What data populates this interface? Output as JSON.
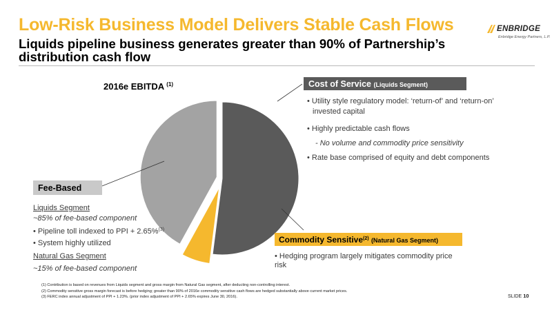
{
  "header": {
    "title": "Low-Risk Business Model Delivers Stable Cash Flows",
    "subtitle": "Liquids pipeline business generates greater than 90% of Partnership’s distribution cash flow"
  },
  "logo": {
    "wordmark": "ENBRIDGE",
    "tagline": "Enbridge Energy Partners, L.P.",
    "color": "#F5B82E"
  },
  "chart_data": {
    "type": "pie",
    "title": "2016e EBITDA",
    "title_note": "(1)",
    "slices": [
      {
        "name": "Cost of Service",
        "share_pct": 52,
        "color": "#5a5a5a"
      },
      {
        "name": "Commodity Sensitive",
        "share_pct": 6,
        "color": "#F5B82E"
      },
      {
        "name": "Fee-Based",
        "share_pct": 42,
        "color": "#a3a3a3"
      }
    ]
  },
  "cost_of_service": {
    "label": "Cost of Service",
    "segment": "(Liquids Segment)",
    "bullets": [
      "• Utility style regulatory model: ‘return-of’ and ‘return-on’",
      "invested capital",
      "• Highly predictable cash flows",
      "- No volume and commodity price sensitivity",
      "• Rate base comprised of equity and debt components"
    ]
  },
  "fee_based": {
    "label": "Fee-Based",
    "liquids_heading": "Liquids Segment",
    "liquids_share": "~85% of fee-based component",
    "bullet_1": "• Pipeline toll indexed to PPI + 2.65%",
    "bullet_1_note": "(3)",
    "bullet_2": "• System highly utilized",
    "gas_heading": "Natural Gas Segment",
    "gas_share": "~15% of fee-based component"
  },
  "commodity_sensitive": {
    "label": "Commodity Sensitive",
    "note": "(2)",
    "segment": "(Natural Gas Segment)",
    "bullet": "• Hedging program largely mitigates commodity price risk"
  },
  "footnotes": [
    "(1)     Contribution is based on revenues from Liquids segment and gross margin from Natural Gas segment, after deducting non-controlling interest.",
    "(2)     Commodity sensitive gross margin forecast is before hedging; greater than 90% of 2016e commodity sensitive cash flows are hedged  substantially above current market prices.",
    "(3)     FERC index annual adjustment of PPI + 1.23%. (prior index adjustment of PPI + 2.65% expires June 30, 2016)."
  ],
  "footer": {
    "slide_label": "SLIDE",
    "slide_number": "10"
  }
}
